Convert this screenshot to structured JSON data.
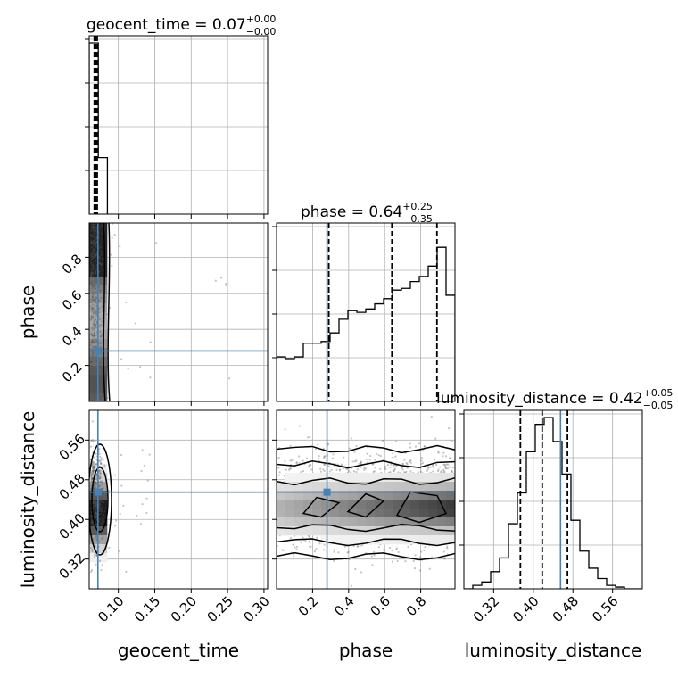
{
  "titles": {
    "geocent_time": {
      "label": "geocent_time = 0.07",
      "sup": "+0.00",
      "sub": "−0.00"
    },
    "phase": {
      "label": "phase = 0.64",
      "sup": "+0.25",
      "sub": "−0.35"
    },
    "luminosity_distance": {
      "label": "luminosity_distance = 0.42",
      "sup": "+0.05",
      "sub": "−0.05"
    }
  },
  "colors": {
    "truth": "#4682b4",
    "hist": "#000000",
    "grid": "#b0b0b0"
  },
  "chart_data": {
    "type": "corner",
    "parameters": [
      "geocent_time",
      "phase",
      "luminosity_distance"
    ],
    "axis_labels": {
      "x": [
        "geocent_time",
        "phase",
        "luminosity_distance"
      ],
      "y": [
        "phase",
        "luminosity_distance"
      ]
    },
    "ranges": {
      "geocent_time": [
        0.06,
        0.305
      ],
      "phase": [
        0.0,
        0.99
      ],
      "luminosity_distance": [
        0.26,
        0.62
      ]
    },
    "ticks": {
      "geocent_time": {
        "values": [
          0.1,
          0.15,
          0.2,
          0.25,
          0.3
        ],
        "labels": [
          "0.10",
          "0.15",
          "0.20",
          "0.25",
          "0.30"
        ]
      },
      "phase": {
        "values": [
          0.2,
          0.4,
          0.6,
          0.8
        ],
        "labels": [
          "0.2",
          "0.4",
          "0.6",
          "0.8"
        ]
      },
      "luminosity_distance": {
        "values": [
          0.32,
          0.4,
          0.48,
          0.56
        ],
        "labels": [
          "0.32",
          "0.40",
          "0.48",
          "0.56"
        ]
      }
    },
    "truths": {
      "geocent_time": 0.072,
      "phase": 0.28,
      "luminosity_distance": 0.455
    },
    "quantiles": {
      "geocent_time": [
        0.067,
        0.069,
        0.071
      ],
      "phase": [
        0.29,
        0.64,
        0.89
      ],
      "luminosity_distance": [
        0.374,
        0.418,
        0.469
      ]
    },
    "histograms": {
      "geocent_time": {
        "edges": [
          0.06,
          0.0725,
          0.085
        ],
        "counts": [
          1.0,
          0.33
        ]
      },
      "phase": {
        "edges": [
          0.0,
          0.0495,
          0.099,
          0.1485,
          0.198,
          0.2475,
          0.297,
          0.3465,
          0.396,
          0.4455,
          0.495,
          0.5445,
          0.594,
          0.6435,
          0.693,
          0.7425,
          0.792,
          0.8415,
          0.891,
          0.9405,
          0.99
        ],
        "counts": [
          0.26,
          0.25,
          0.26,
          0.34,
          0.34,
          0.35,
          0.4,
          0.48,
          0.53,
          0.52,
          0.54,
          0.57,
          0.6,
          0.65,
          0.66,
          0.7,
          0.73,
          0.79,
          0.9,
          0.62
        ]
      },
      "luminosity_distance": {
        "edges": [
          0.26,
          0.278,
          0.296,
          0.314,
          0.332,
          0.35,
          0.368,
          0.386,
          0.404,
          0.422,
          0.44,
          0.458,
          0.476,
          0.494,
          0.512,
          0.53,
          0.548,
          0.566,
          0.584,
          0.602,
          0.62
        ],
        "counts": [
          0.0,
          0.02,
          0.04,
          0.1,
          0.18,
          0.38,
          0.56,
          0.8,
          0.96,
          1.0,
          0.86,
          0.67,
          0.4,
          0.22,
          0.12,
          0.06,
          0.02,
          0.01,
          0.0,
          0.0
        ]
      }
    }
  }
}
